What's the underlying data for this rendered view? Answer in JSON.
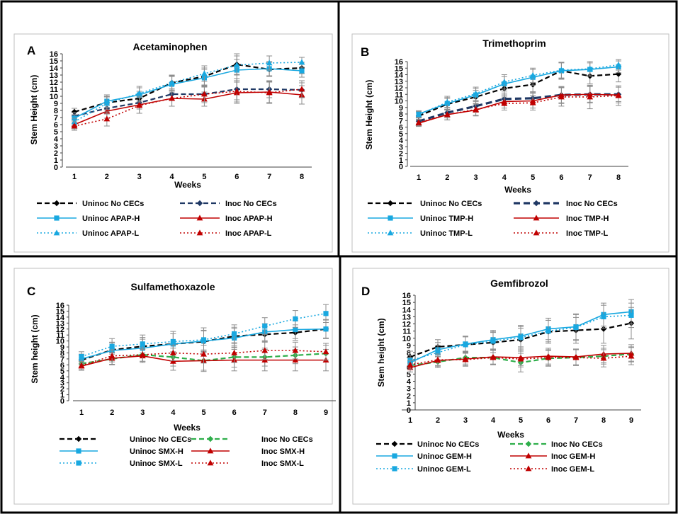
{
  "chart_data": [
    {
      "type": "line",
      "panel": "A",
      "title": "Acetaminophen",
      "xlabel": "Weeks",
      "ylabel": "Stem Height (cm)",
      "x": [
        1,
        2,
        3,
        4,
        5,
        6,
        7,
        8
      ],
      "ylim": [
        0,
        16
      ],
      "yticks": [
        0,
        1,
        2,
        3,
        4,
        5,
        6,
        7,
        8,
        9,
        10,
        11,
        12,
        13,
        14,
        15,
        16
      ],
      "series": [
        {
          "name": "Uninoc No CECs",
          "values": [
            7.8,
            9.1,
            9.7,
            11.9,
            12.8,
            14.5,
            13.8,
            14.0
          ],
          "errors": [
            0.5,
            0.9,
            1.0,
            1.0,
            1.2,
            1.5,
            1.0,
            0.8
          ]
        },
        {
          "name": "Inoc No CECs",
          "values": [
            7.2,
            8.3,
            9.1,
            10.3,
            10.3,
            11.0,
            11.0,
            10.9
          ],
          "errors": [
            0.5,
            0.8,
            0.9,
            0.8,
            1.0,
            1.5,
            1.2,
            1.0
          ]
        },
        {
          "name": "Uninoc APAP-H",
          "values": [
            6.9,
            9.3,
            10.2,
            11.7,
            12.6,
            13.7,
            13.9,
            13.6
          ],
          "errors": [
            0.5,
            0.9,
            1.0,
            1.1,
            1.2,
            1.5,
            1.0,
            0.9
          ]
        },
        {
          "name": "Inoc APAP-H",
          "values": [
            6.0,
            7.9,
            8.8,
            9.7,
            9.6,
            10.5,
            10.6,
            10.2
          ],
          "errors": [
            0.6,
            1.0,
            1.2,
            1.1,
            1.0,
            1.5,
            1.5,
            1.3
          ]
        },
        {
          "name": "Uninoc APAP-L",
          "values": [
            6.4,
            9.0,
            10.4,
            11.9,
            13.2,
            14.4,
            14.7,
            14.8
          ],
          "errors": [
            0.5,
            0.9,
            1.0,
            1.1,
            1.1,
            1.3,
            1.0,
            0.7
          ]
        },
        {
          "name": "Inoc APAP-L",
          "values": [
            5.8,
            6.8,
            8.7,
            9.7,
            10.3,
            10.7,
            10.5,
            11.0
          ],
          "errors": [
            0.6,
            1.0,
            1.1,
            1.1,
            1.2,
            1.5,
            1.5,
            1.2
          ]
        }
      ]
    },
    {
      "type": "line",
      "panel": "B",
      "title": "Trimethoprim",
      "xlabel": "Weeks",
      "ylabel": "Stem Height (cm)",
      "x": [
        1,
        2,
        3,
        4,
        5,
        6,
        7,
        8
      ],
      "ylim": [
        0,
        16
      ],
      "yticks": [
        0,
        1,
        2,
        3,
        4,
        5,
        6,
        7,
        8,
        9,
        10,
        11,
        12,
        13,
        14,
        15,
        16
      ],
      "series": [
        {
          "name": "Uninoc No CECs",
          "values": [
            7.7,
            9.5,
            10.6,
            11.9,
            12.5,
            14.6,
            13.8,
            14.1
          ],
          "errors": [
            0.5,
            0.9,
            1.0,
            1.0,
            1.2,
            1.3,
            1.2,
            1.2
          ]
        },
        {
          "name": "Inoc No CECs",
          "values": [
            6.9,
            8.2,
            9.2,
            10.3,
            10.4,
            10.9,
            11.0,
            11.0
          ],
          "errors": [
            0.5,
            0.8,
            0.9,
            0.9,
            1.0,
            1.2,
            1.2,
            1.1
          ]
        },
        {
          "name": "Uninoc TMP-H",
          "values": [
            8.0,
            9.6,
            10.9,
            12.6,
            13.6,
            14.6,
            14.8,
            15.2
          ],
          "errors": [
            0.5,
            0.9,
            1.0,
            1.1,
            1.2,
            1.2,
            1.0,
            0.9
          ]
        },
        {
          "name": "Inoc TMP-H",
          "values": [
            6.6,
            7.9,
            8.6,
            9.9,
            10.0,
            10.9,
            11.0,
            10.9
          ],
          "errors": [
            0.5,
            0.8,
            0.9,
            1.0,
            1.1,
            1.3,
            1.3,
            1.2
          ]
        },
        {
          "name": "Uninoc TMP-L",
          "values": [
            7.9,
            9.8,
            11.1,
            12.9,
            13.9,
            14.7,
            14.9,
            15.5
          ],
          "errors": [
            0.5,
            0.9,
            1.0,
            1.1,
            1.1,
            1.2,
            1.1,
            0.8
          ]
        },
        {
          "name": "Inoc TMP-L",
          "values": [
            6.7,
            7.9,
            8.7,
            9.6,
            9.7,
            10.6,
            10.6,
            10.8
          ],
          "errors": [
            0.5,
            0.8,
            0.9,
            1.0,
            1.1,
            1.4,
            1.8,
            1.5
          ]
        }
      ]
    },
    {
      "type": "line",
      "panel": "C",
      "title": "Sulfamethoxazole",
      "xlabel": "Weeks",
      "ylabel": "Stem height (cm)",
      "x": [
        1,
        2,
        3,
        4,
        5,
        6,
        7,
        8,
        9
      ],
      "ylim": [
        0,
        16
      ],
      "yticks": [
        0,
        1,
        2,
        3,
        4,
        5,
        6,
        7,
        8,
        9,
        10,
        11,
        12,
        13,
        14,
        15,
        16
      ],
      "series": [
        {
          "name": "Uninoc No CECs",
          "values": [
            6.8,
            8.5,
            9.1,
            9.5,
            9.9,
            10.8,
            11.1,
            11.4,
            12.0
          ],
          "errors": [
            0.8,
            1.3,
            1.5,
            1.7,
            1.8,
            1.5,
            1.3,
            1.3,
            1.5
          ]
        },
        {
          "name": "Inoc No CECs",
          "values": [
            6.2,
            7.0,
            7.7,
            7.3,
            6.7,
            7.3,
            7.3,
            7.6,
            7.9
          ],
          "errors": [
            0.7,
            1.0,
            1.1,
            1.5,
            1.8,
            1.7,
            1.5,
            1.4,
            1.4
          ]
        },
        {
          "name": "Uninoc SMX-H",
          "values": [
            7.0,
            8.4,
            8.8,
            9.5,
            10.0,
            10.5,
            11.5,
            11.9,
            12.0
          ],
          "errors": [
            0.8,
            1.3,
            1.5,
            1.7,
            1.8,
            1.6,
            1.4,
            1.5,
            1.6
          ]
        },
        {
          "name": "Inoc SMX-H",
          "values": [
            5.8,
            7.1,
            7.5,
            6.6,
            6.7,
            6.8,
            6.8,
            6.8,
            6.8
          ],
          "errors": [
            0.7,
            1.0,
            1.1,
            1.5,
            1.6,
            1.8,
            1.8,
            1.8,
            1.8
          ]
        },
        {
          "name": "Uninoc SMX-L",
          "values": [
            7.4,
            9.1,
            9.5,
            9.9,
            10.2,
            11.2,
            12.5,
            13.7,
            14.6
          ],
          "errors": [
            0.8,
            1.3,
            1.5,
            1.7,
            2.0,
            1.5,
            1.4,
            1.4,
            1.5
          ]
        },
        {
          "name": "Inoc SMX-L",
          "values": [
            5.9,
            7.5,
            7.7,
            8.0,
            7.8,
            8.0,
            8.4,
            8.4,
            8.2
          ],
          "errors": [
            0.7,
            1.0,
            1.1,
            1.3,
            1.5,
            1.6,
            1.5,
            1.4,
            1.4
          ]
        }
      ]
    },
    {
      "type": "line",
      "panel": "D",
      "title": "Gemfibrozol",
      "xlabel": "Weeks",
      "ylabel": "Stem height (cm)",
      "x": [
        1,
        2,
        3,
        4,
        5,
        6,
        7,
        8,
        9
      ],
      "ylim": [
        0,
        16
      ],
      "yticks": [
        0,
        1,
        2,
        3,
        4,
        5,
        6,
        7,
        8,
        9,
        10,
        11,
        12,
        13,
        14,
        15,
        16
      ],
      "series": [
        {
          "name": "Uninoc No CECs",
          "values": [
            7.4,
            8.8,
            9.1,
            9.4,
            9.8,
            10.9,
            11.1,
            11.3,
            12.1
          ],
          "errors": [
            0.8,
            1.0,
            1.1,
            1.4,
            1.6,
            1.6,
            1.8,
            2.0,
            2.2
          ]
        },
        {
          "name": "Inoc No CECs",
          "values": [
            6.2,
            6.7,
            7.3,
            7.3,
            6.6,
            7.2,
            7.3,
            7.5,
            7.8
          ],
          "errors": [
            0.6,
            0.8,
            0.9,
            1.0,
            1.3,
            1.1,
            1.1,
            1.1,
            1.0
          ]
        },
        {
          "name": "Uninoc GEM-H",
          "values": [
            6.6,
            8.4,
            9.2,
            9.8,
            10.3,
            11.3,
            11.6,
            13.3,
            13.7
          ],
          "errors": [
            0.7,
            1.0,
            1.1,
            1.3,
            1.5,
            1.5,
            1.8,
            1.6,
            1.7
          ]
        },
        {
          "name": "Inoc GEM-H",
          "values": [
            5.9,
            6.9,
            7.1,
            7.4,
            7.3,
            7.5,
            7.4,
            7.8,
            7.9
          ],
          "errors": [
            0.6,
            0.8,
            0.9,
            1.0,
            1.1,
            1.1,
            1.1,
            1.2,
            1.2
          ]
        },
        {
          "name": "Uninoc GEM-L",
          "values": [
            6.9,
            8.0,
            9.1,
            9.6,
            10.1,
            11.0,
            11.5,
            13.0,
            13.2
          ],
          "errors": [
            0.7,
            1.0,
            1.1,
            1.3,
            1.5,
            1.5,
            1.8,
            1.6,
            1.7
          ]
        },
        {
          "name": "Inoc GEM-L",
          "values": [
            6.3,
            7.0,
            7.0,
            7.3,
            7.1,
            7.3,
            7.3,
            7.2,
            7.5
          ],
          "errors": [
            0.6,
            0.8,
            0.9,
            1.0,
            1.1,
            1.1,
            1.1,
            1.2,
            1.2
          ]
        }
      ]
    }
  ],
  "series_styles": {
    "Uninoc No CECs": {
      "color": "#000000",
      "dash": "dash",
      "marker": "diamond"
    },
    "Inoc No CECs A": {
      "color": "#1f3864",
      "dash": "dash",
      "marker": "diamond"
    },
    "Inoc No CECs C": {
      "color": "#2eae4a",
      "dash": "dash",
      "marker": "diamond"
    },
    "Uninoc H": {
      "color": "#19a8e0",
      "dash": "solid",
      "marker": "square"
    },
    "Inoc H": {
      "color": "#c00000",
      "dash": "solid",
      "marker": "triangle"
    },
    "Uninoc L": {
      "color": "#19a8e0",
      "dash": "dot",
      "marker": "triangle"
    },
    "Uninoc L C": {
      "color": "#19a8e0",
      "dash": "dot",
      "marker": "square"
    },
    "Inoc L": {
      "color": "#c00000",
      "dash": "dot",
      "marker": "triangle"
    },
    "error_bar": "#8c8c8c"
  }
}
